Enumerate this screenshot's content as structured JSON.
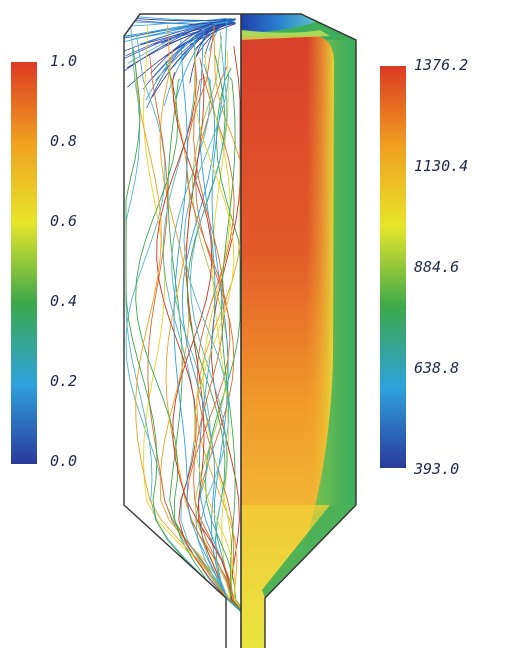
{
  "left_legend": {
    "ticks": [
      "1.0",
      "0.8",
      "0.6",
      "0.4",
      "0.2",
      "0.0"
    ],
    "stops": [
      "#dc3a23",
      "#f0a020",
      "#e6e62a",
      "#3ca84a",
      "#2fa2dc",
      "#2a3a9a"
    ]
  },
  "right_legend": {
    "ticks": [
      "1376.2",
      "1130.4",
      "884.6",
      "638.8",
      "393.0"
    ],
    "stops": [
      "#dc3a23",
      "#f0a020",
      "#e6e62a",
      "#3ca84a",
      "#2fa2dc",
      "#2a3a9a"
    ]
  },
  "vessel": {
    "outline_color": "#333333",
    "left_half_fill": "#ffffff",
    "right_background": "#3fae5a",
    "core_hot": "#d8462a",
    "core_warm": "#f0a42a",
    "core_yellow": "#e8e640",
    "cold_spot": "#2a5bc0"
  },
  "streamlines": {
    "colors": [
      "#2a3a9a",
      "#3d55b8",
      "#2fa2dc",
      "#52b6c0",
      "#3ca84a",
      "#a6c84a",
      "#e6d42a",
      "#f0a020",
      "#e06a2a",
      "#cc3322"
    ]
  }
}
